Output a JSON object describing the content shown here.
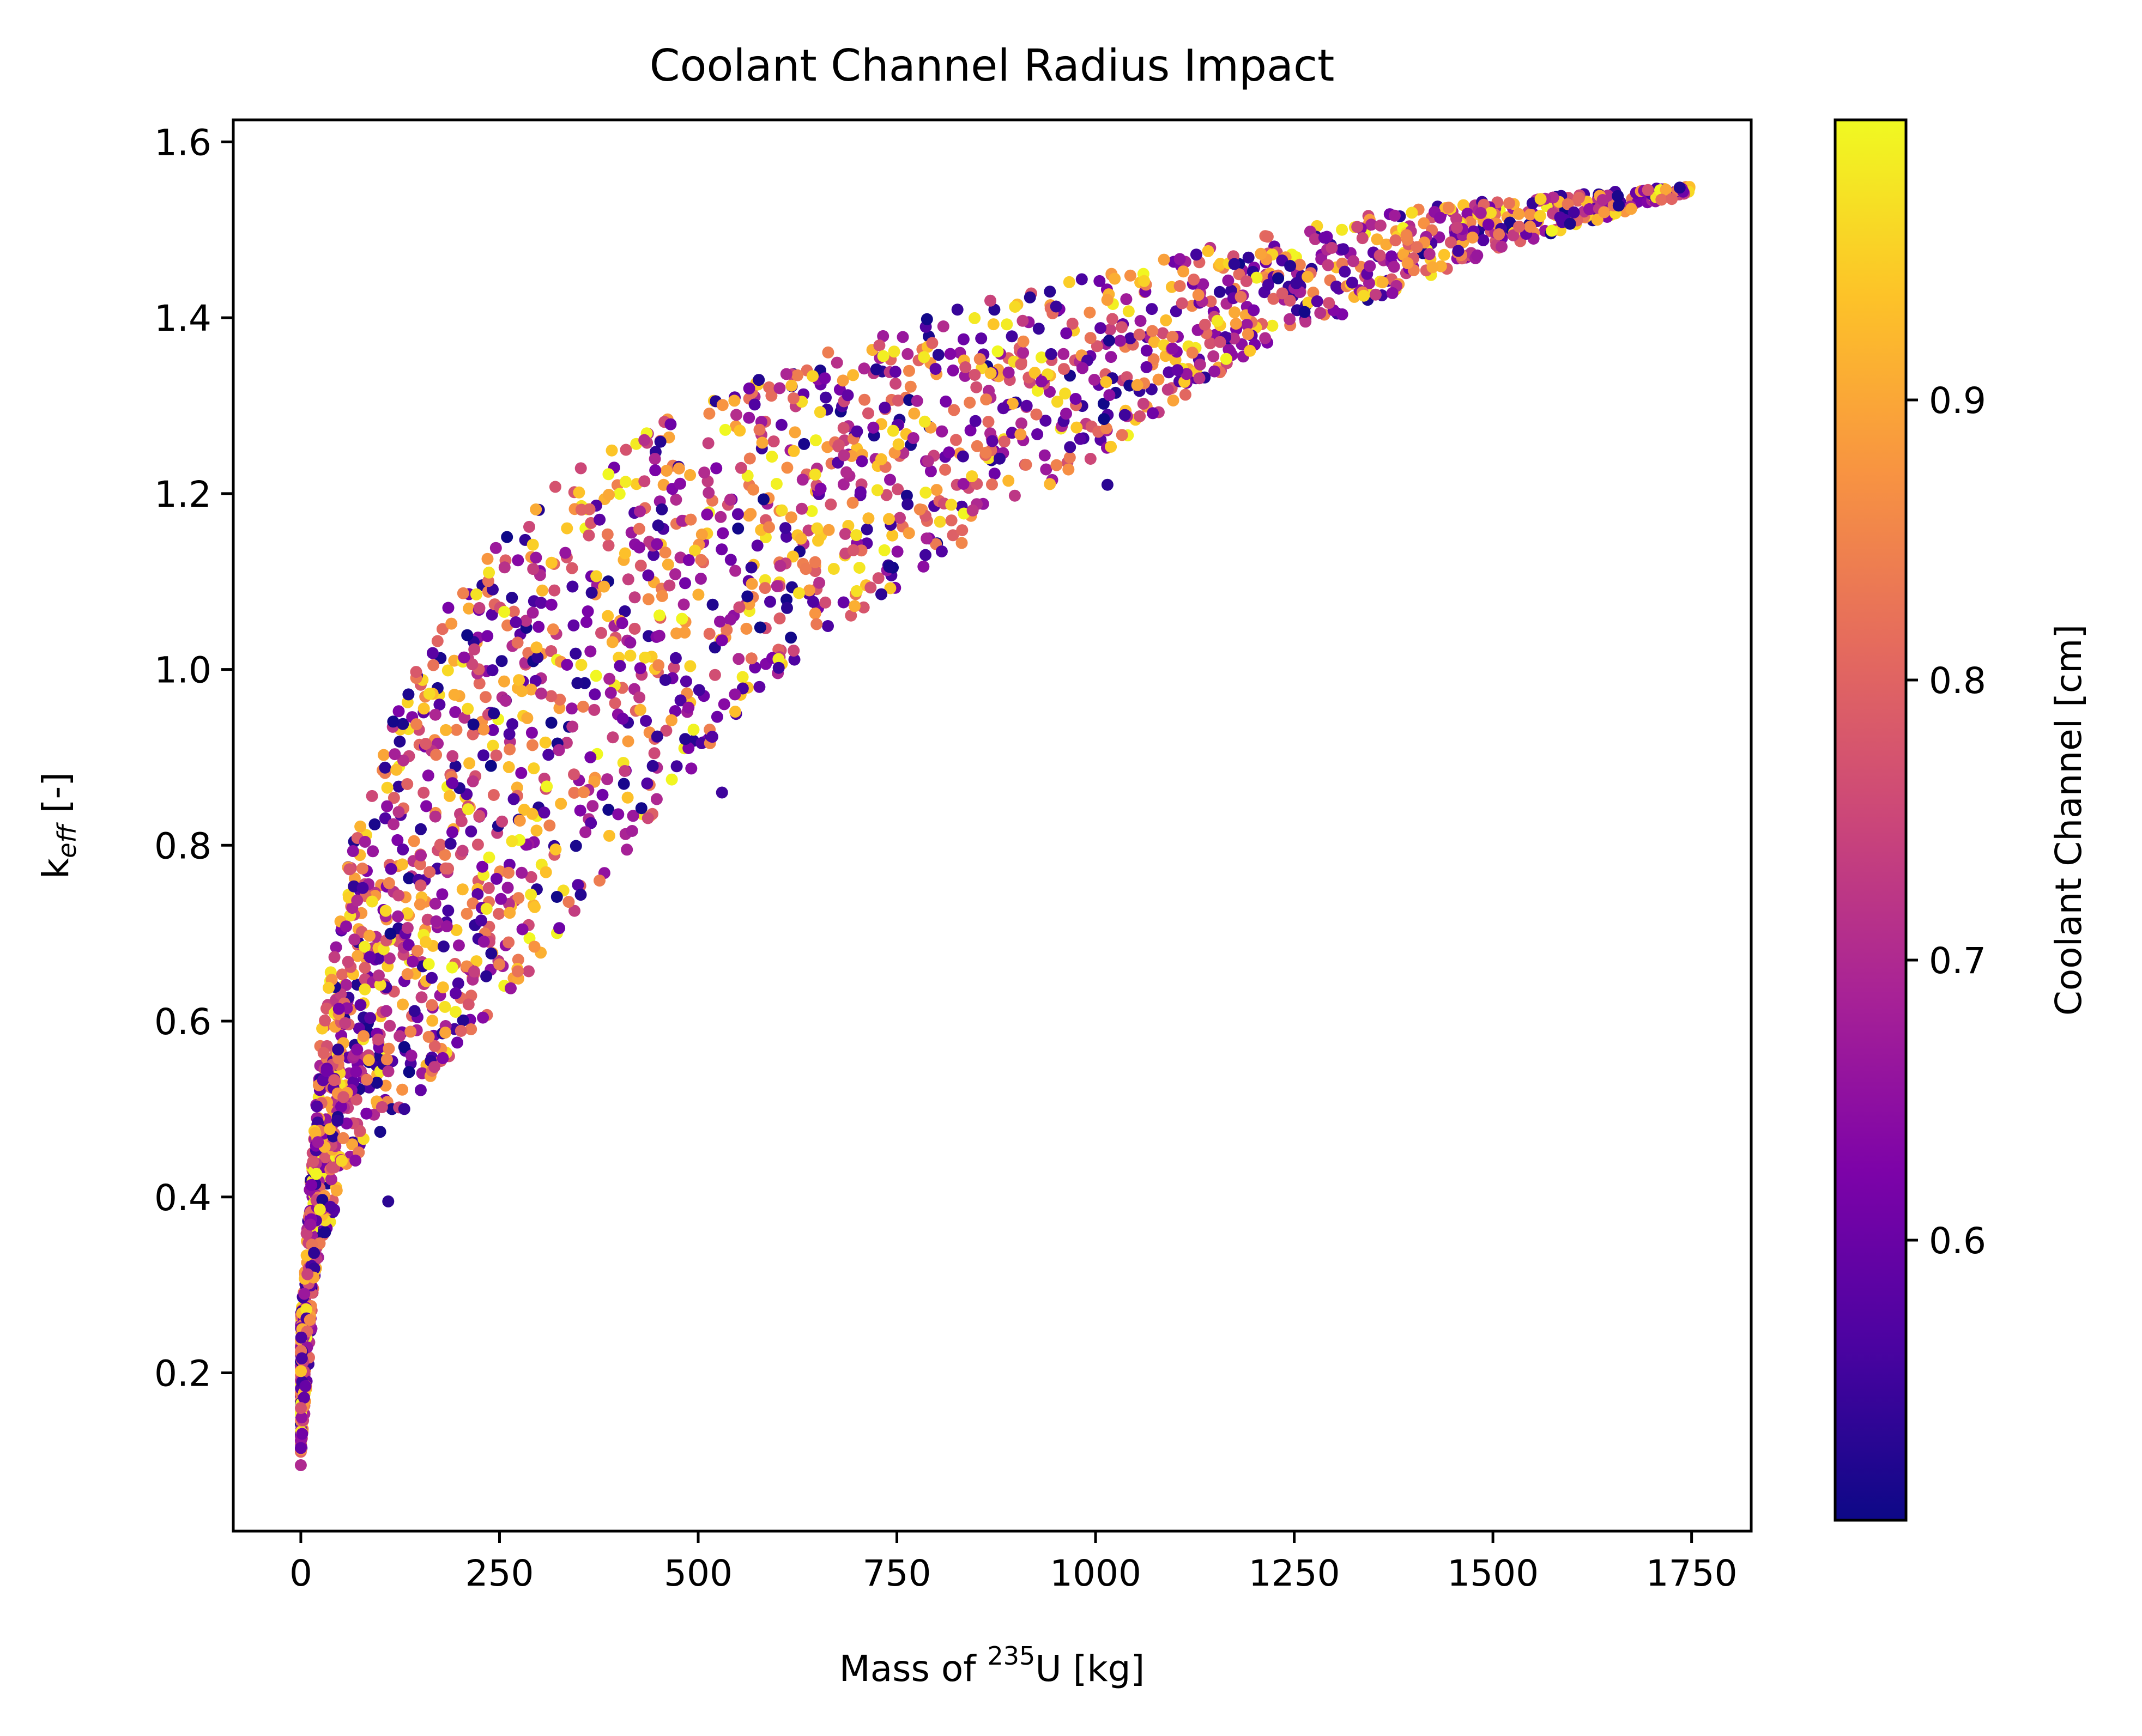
{
  "chart_data": {
    "type": "scatter",
    "title": "Coolant Channel Radius Impact",
    "xlabel": {
      "prefix": "Mass of ",
      "sup": "235",
      "suffix": "U [kg]"
    },
    "ylabel": {
      "prefix": "k",
      "sub": "eff",
      "suffix": " [-]"
    },
    "xlim": [
      -85,
      1825
    ],
    "ylim": [
      0.02,
      1.625
    ],
    "xticks": [
      0,
      250,
      500,
      750,
      1000,
      1250,
      1500,
      1750
    ],
    "yticks": [
      0.2,
      0.4,
      0.6,
      0.8,
      1.0,
      1.2,
      1.4,
      1.6
    ],
    "ytick_labels": [
      "0.2",
      "0.4",
      "0.6",
      "0.8",
      "1.0",
      "1.2",
      "1.4",
      "1.6"
    ],
    "colorbar": {
      "label": "Coolant Channel [cm]",
      "range": [
        0.5,
        1.0
      ],
      "ticks": [
        0.6,
        0.7,
        0.8,
        0.9
      ],
      "tick_labels": [
        "0.6",
        "0.7",
        "0.8",
        "0.9"
      ],
      "colormap": "plasma"
    },
    "grid": false,
    "point_count": 2500,
    "upper_envelope": [
      [
        0,
        0.27
      ],
      [
        25,
        0.6
      ],
      [
        60,
        0.8
      ],
      [
        120,
        0.98
      ],
      [
        200,
        1.12
      ],
      [
        350,
        1.26
      ],
      [
        550,
        1.34
      ],
      [
        800,
        1.42
      ],
      [
        1100,
        1.48
      ],
      [
        1400,
        1.53
      ],
      [
        1740,
        1.55
      ]
    ],
    "lower_envelope": [
      [
        0,
        0.09
      ],
      [
        20,
        0.3
      ],
      [
        60,
        0.4
      ],
      [
        150,
        0.47
      ],
      [
        300,
        0.62
      ],
      [
        450,
        0.8
      ],
      [
        580,
        0.95
      ],
      [
        800,
        1.1
      ],
      [
        1000,
        1.22
      ],
      [
        1200,
        1.35
      ],
      [
        1500,
        1.47
      ],
      [
        1740,
        1.54
      ]
    ],
    "sample_points": [
      {
        "x": 1735,
        "y": 1.548,
        "c": 0.52
      },
      {
        "x": 1725,
        "y": 1.535,
        "c": 0.8
      },
      {
        "x": 1640,
        "y": 1.52,
        "c": 0.88
      },
      {
        "x": 1015,
        "y": 1.21,
        "c": 0.53
      },
      {
        "x": 110,
        "y": 0.395,
        "c": 0.53
      },
      {
        "x": 530,
        "y": 0.86,
        "c": 0.55
      },
      {
        "x": 0,
        "y": 0.095,
        "c": 0.7
      },
      {
        "x": 1310,
        "y": 1.5,
        "c": 0.98
      },
      {
        "x": 1560,
        "y": 1.535,
        "c": 0.95
      }
    ]
  }
}
